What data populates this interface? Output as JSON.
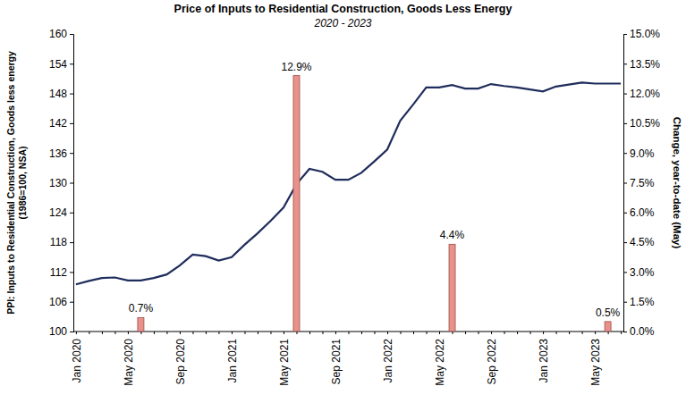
{
  "chart_data": {
    "type": "line",
    "title": "Price of Inputs to Residential Construction, Goods Less Energy",
    "subtitle": "2020 - 2023",
    "ylabel": [
      "PPI: Inputs to Residential Construction, Goods less energy",
      "(1986=100, NSA)"
    ],
    "y2label": "Change, year-to-date (May)",
    "categories": [
      "Jan 2020",
      null,
      null,
      null,
      "May 2020",
      null,
      null,
      null,
      "Sep 2020",
      null,
      null,
      null,
      "Jan 2021",
      null,
      null,
      null,
      "May 2021",
      null,
      null,
      null,
      "Sep 2021",
      null,
      null,
      null,
      "Jan 2022",
      null,
      null,
      null,
      "May 2022",
      null,
      null,
      null,
      "Sep 2022",
      null,
      null,
      null,
      "Jan 2023",
      null,
      null,
      null,
      "May 2023",
      null,
      null
    ],
    "ylim": [
      100,
      160
    ],
    "yticks": [
      100,
      106,
      112,
      118,
      124,
      130,
      136,
      142,
      148,
      154,
      160
    ],
    "y2lim": [
      0,
      15
    ],
    "y2ticks": [
      {
        "value": 0,
        "label": "0.0%"
      },
      {
        "value": 1.5,
        "label": "1.5%"
      },
      {
        "value": 3,
        "label": "3.0%"
      },
      {
        "value": 4.5,
        "label": "4.5%"
      },
      {
        "value": 6,
        "label": "6.0%"
      },
      {
        "value": 7.5,
        "label": "7.5%"
      },
      {
        "value": 9,
        "label": "9.0%"
      },
      {
        "value": 10.5,
        "label": "10.5%"
      },
      {
        "value": 12,
        "label": "12.0%"
      },
      {
        "value": 13.5,
        "label": "13.5%"
      },
      {
        "value": 15,
        "label": "15.0%"
      }
    ],
    "grid": false,
    "series": [
      {
        "type": "line",
        "color": "#1f2d5c",
        "axis": "y",
        "values": [
          109.5,
          110.2,
          110.8,
          110.9,
          110.3,
          110.3,
          110.8,
          111.5,
          113.3,
          115.5,
          115.2,
          114.3,
          115.0,
          117.5,
          119.8,
          122.3,
          125.0,
          129.7,
          132.8,
          132.2,
          130.6,
          130.6,
          132.0,
          134.3,
          136.7,
          142.5,
          145.8,
          149.2,
          149.2,
          149.7,
          149.0,
          149.0,
          149.9,
          149.5,
          149.2,
          148.8,
          148.4,
          149.4,
          149.8,
          150.2,
          150.0,
          150.0,
          150.0
        ]
      },
      {
        "type": "bar",
        "color": "#e8928c",
        "axis": "y2",
        "data_labels": true,
        "values": [
          null,
          null,
          null,
          null,
          null,
          0.7,
          null,
          null,
          null,
          null,
          null,
          null,
          null,
          null,
          null,
          null,
          null,
          12.9,
          null,
          null,
          null,
          null,
          null,
          null,
          null,
          null,
          null,
          null,
          null,
          4.4,
          null,
          null,
          null,
          null,
          null,
          null,
          null,
          null,
          null,
          null,
          null,
          0.5,
          null
        ],
        "value_labels": [
          null,
          null,
          null,
          null,
          null,
          "0.7%",
          null,
          null,
          null,
          null,
          null,
          null,
          null,
          null,
          null,
          null,
          null,
          "12.9%",
          null,
          null,
          null,
          null,
          null,
          null,
          null,
          null,
          null,
          null,
          null,
          "4.4%",
          null,
          null,
          null,
          null,
          null,
          null,
          null,
          null,
          null,
          null,
          null,
          "0.5%",
          null
        ]
      }
    ]
  }
}
